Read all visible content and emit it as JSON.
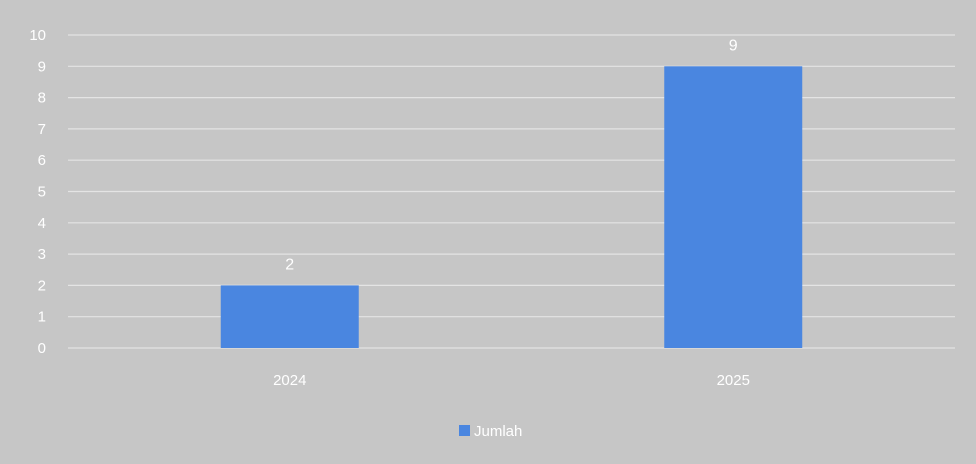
{
  "chart_data": {
    "type": "bar",
    "categories": [
      "2024",
      "2025"
    ],
    "series": [
      {
        "name": "Jumlah",
        "values": [
          2,
          9
        ]
      }
    ],
    "ylim": [
      0,
      10
    ],
    "yticks": [
      0,
      1,
      2,
      3,
      4,
      5,
      6,
      7,
      8,
      9,
      10
    ],
    "grid": true,
    "data_labels": true,
    "legend_position": "bottom"
  },
  "colors": {
    "background": "#c6c6c6",
    "gridline": "#e4e4e4",
    "bar": "#4a86e0",
    "text": "#ffffff"
  }
}
